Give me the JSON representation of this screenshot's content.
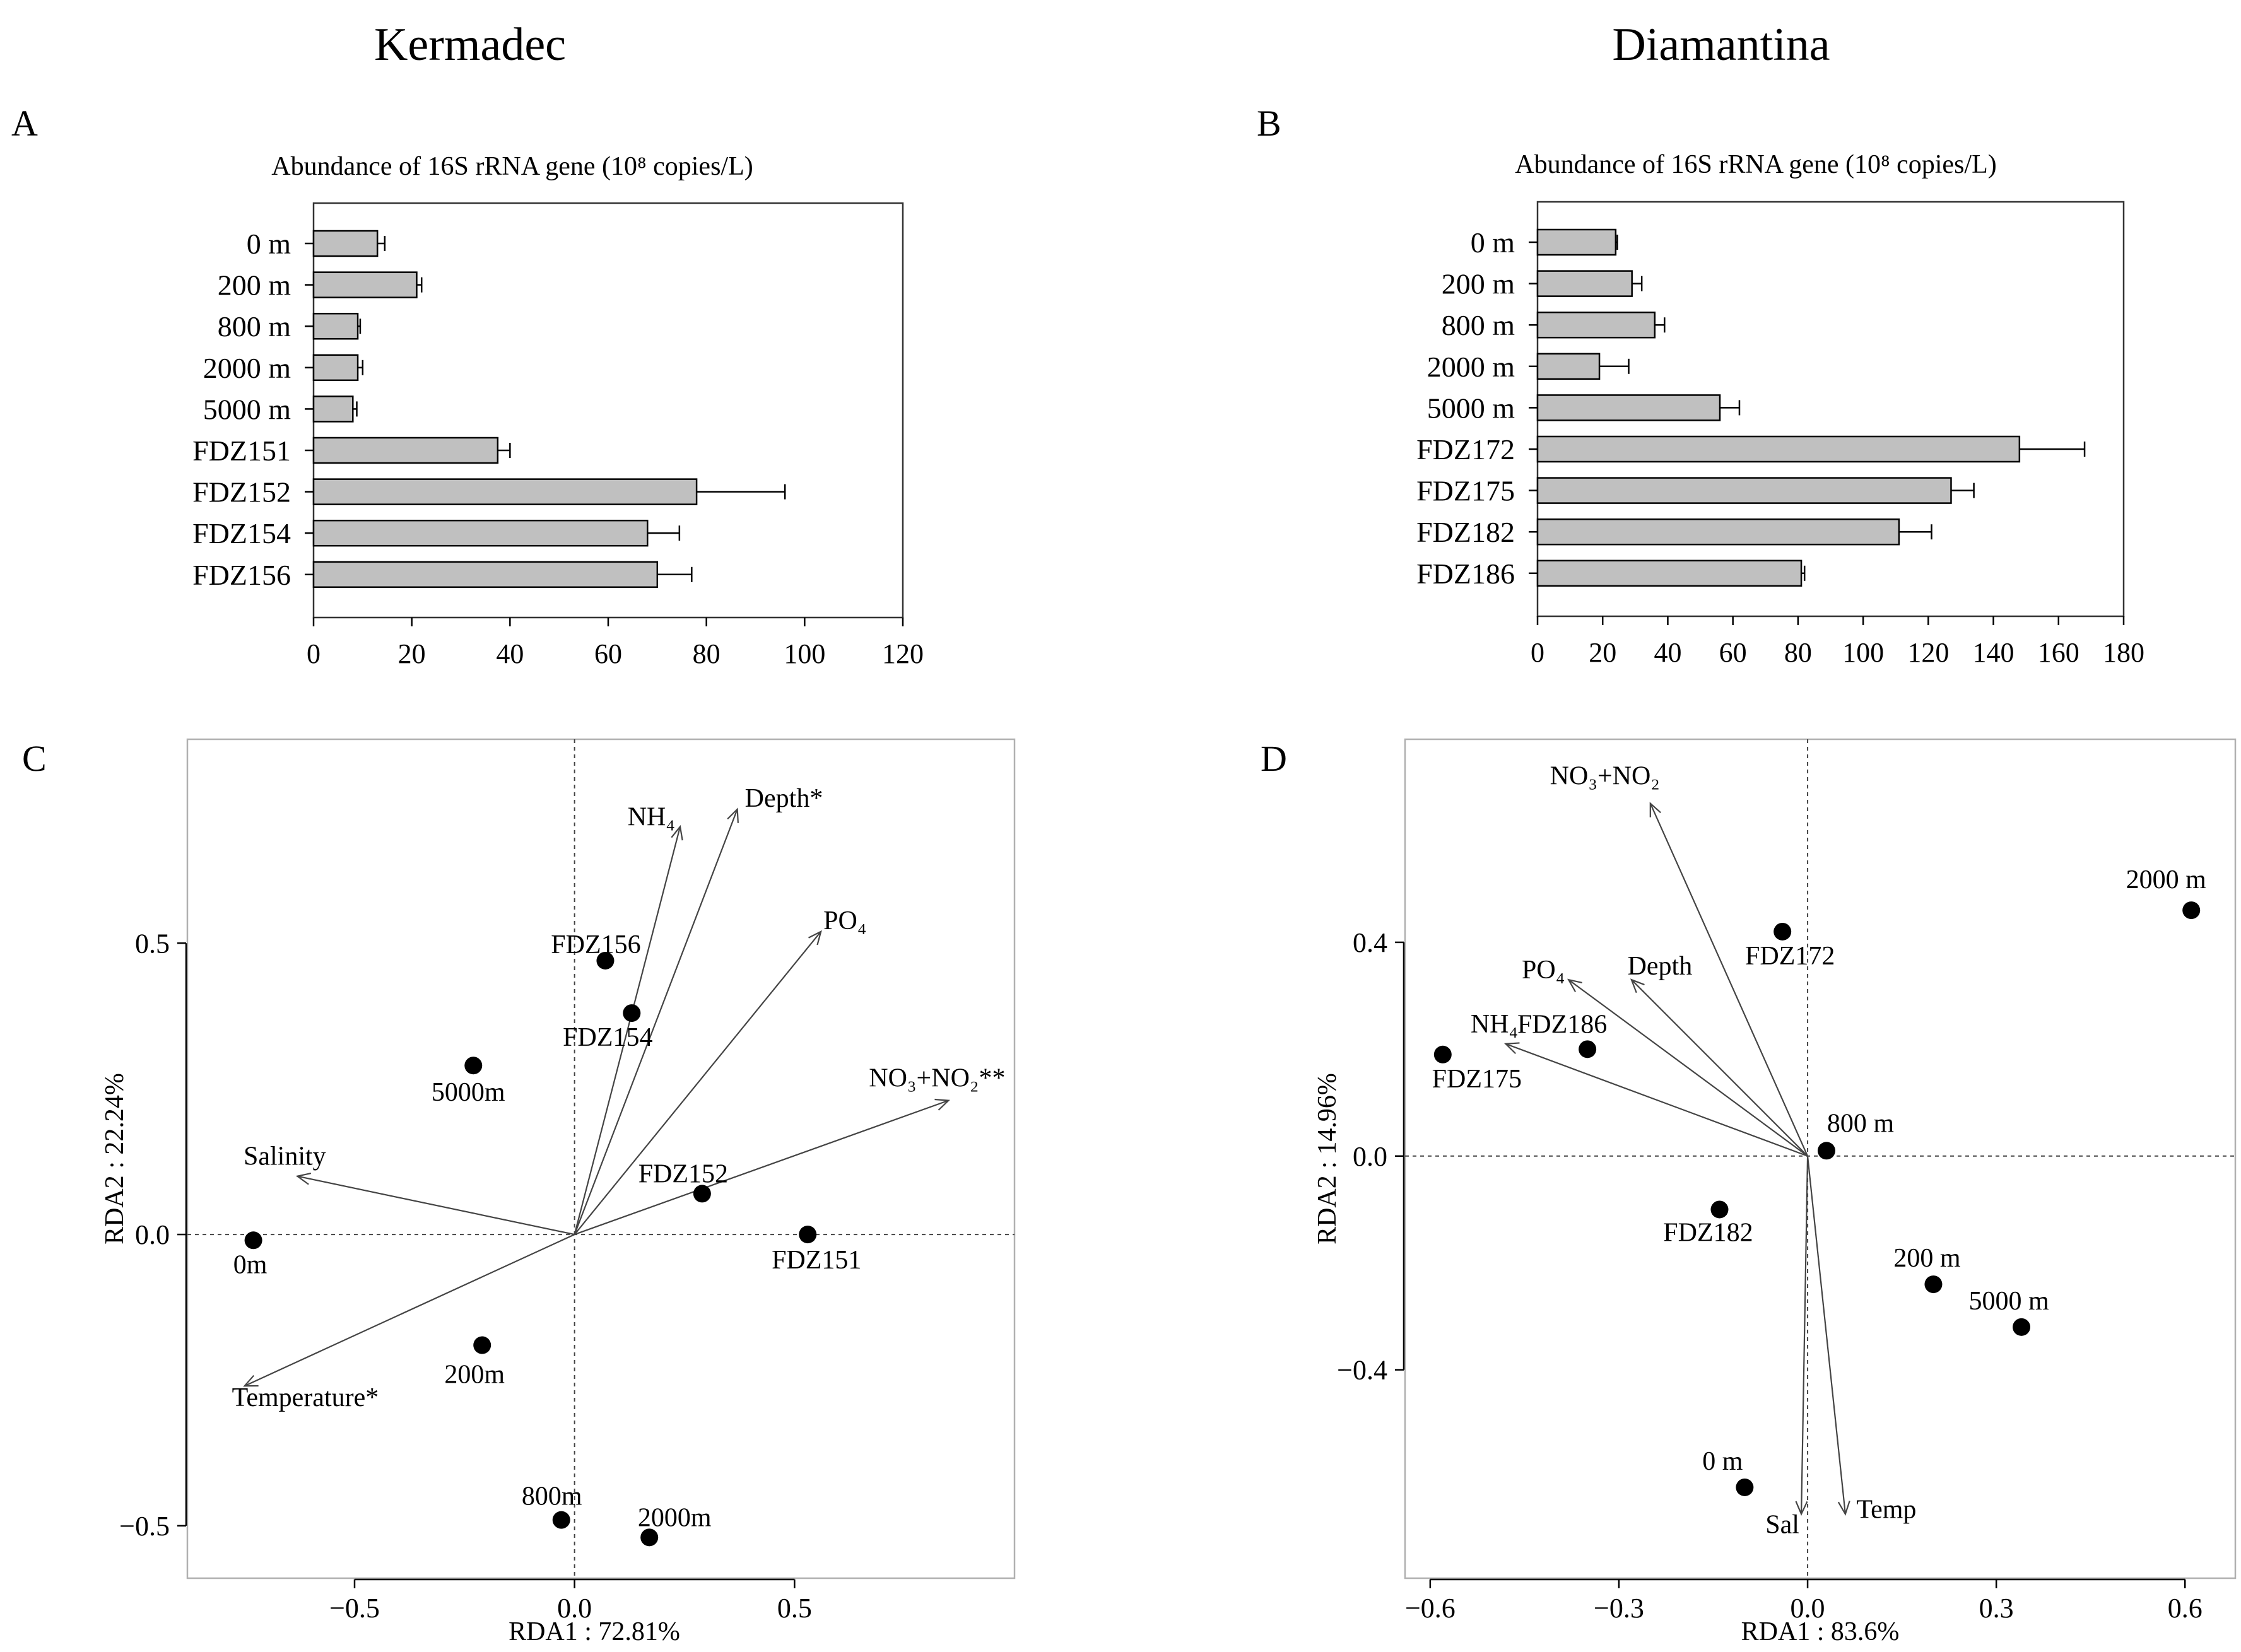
{
  "site_titles": {
    "left": "Kermadec",
    "right": "Diamantina"
  },
  "chart_data": [
    {
      "panel": "A",
      "type": "bar",
      "orientation": "horizontal",
      "title": "Abundance of 16S rRNA gene (10⁸ copies/L)",
      "categories": [
        "0 m",
        "200 m",
        "800 m",
        "2000 m",
        "5000 m",
        "FDZ151",
        "FDZ152",
        "FDZ154",
        "FDZ156"
      ],
      "values": [
        13,
        21,
        9,
        9,
        8,
        37.5,
        78,
        68,
        70
      ],
      "errors": [
        1.5,
        1,
        0.5,
        1,
        0.8,
        2.5,
        18,
        6.5,
        7
      ],
      "xlim": [
        0,
        120
      ],
      "xticks": [
        0,
        20,
        40,
        60,
        80,
        100,
        120
      ],
      "xtick_labels": [
        "0",
        "20",
        "40",
        "60",
        "80",
        "100",
        "120"
      ]
    },
    {
      "panel": "B",
      "type": "bar",
      "orientation": "horizontal",
      "title": "Abundance of 16S rRNA gene (10⁸ copies/L)",
      "categories": [
        "0 m",
        "200 m",
        "800 m",
        "2000 m",
        "5000 m",
        "FDZ172",
        "FDZ175",
        "FDZ182",
        "FDZ186"
      ],
      "values": [
        24,
        29,
        36,
        19,
        56,
        148,
        127,
        111,
        81
      ],
      "errors": [
        0.5,
        3,
        3,
        9,
        6,
        20,
        7,
        10,
        1
      ],
      "xlim": [
        0,
        180
      ],
      "xticks": [
        0,
        20,
        40,
        60,
        80,
        100,
        120,
        140,
        160,
        180
      ],
      "xtick_labels": [
        "0",
        "20",
        "40",
        "60",
        "80",
        "100",
        "120",
        "140",
        "160",
        "180"
      ]
    },
    {
      "panel": "C",
      "type": "scatter",
      "subtype": "rda_biplot",
      "xlabel": "RDA1 : 72.81%",
      "ylabel": "RDA2 : 22.24%",
      "xlim": [
        -0.88,
        1.0
      ],
      "ylim": [
        -0.59,
        0.85
      ],
      "xticks": [
        -0.5,
        0.0,
        0.5
      ],
      "xtick_labels": [
        "−0.5",
        "0.0",
        "0.5"
      ],
      "yticks": [
        -0.5,
        0.0,
        0.5
      ],
      "ytick_labels": [
        "−0.5",
        "0.0",
        "0.5"
      ],
      "arrows": [
        {
          "label": "NH₄",
          "x": 0.24,
          "y": 0.7
        },
        {
          "label": "Depth*",
          "x": 0.37,
          "y": 0.73
        },
        {
          "label": "PO₄",
          "x": 0.56,
          "y": 0.52
        },
        {
          "label": "NO₃+NO₂**",
          "x": 0.85,
          "y": 0.23
        },
        {
          "label": "Salinity",
          "x": -0.63,
          "y": 0.1
        },
        {
          "label": "Temperature*",
          "x": -0.75,
          "y": -0.26
        }
      ],
      "points": [
        {
          "label": "FDZ156",
          "x": 0.07,
          "y": 0.47
        },
        {
          "label": "FDZ154",
          "x": 0.13,
          "y": 0.38
        },
        {
          "label": "5000m",
          "x": -0.23,
          "y": 0.29
        },
        {
          "label": "FDZ152",
          "x": 0.29,
          "y": 0.07
        },
        {
          "label": "FDZ151",
          "x": 0.53,
          "y": 0.0
        },
        {
          "label": "0m",
          "x": -0.73,
          "y": -0.01
        },
        {
          "label": "200m",
          "x": -0.21,
          "y": -0.19
        },
        {
          "label": "800m",
          "x": -0.03,
          "y": -0.49
        },
        {
          "label": "2000m",
          "x": 0.17,
          "y": -0.52
        }
      ]
    },
    {
      "panel": "D",
      "type": "scatter",
      "subtype": "rda_biplot",
      "xlabel": "RDA1 : 83.6%",
      "ylabel": "RDA2 : 14.96%",
      "xlim": [
        -0.64,
        0.68
      ],
      "ylim": [
        -0.79,
        0.78
      ],
      "xticks": [
        -0.6,
        -0.3,
        0.0,
        0.3,
        0.6
      ],
      "xtick_labels": [
        "−0.6",
        "−0.3",
        "0.0",
        "0.3",
        "0.6"
      ],
      "yticks": [
        -0.4,
        0.0,
        0.4
      ],
      "ytick_labels": [
        "−0.4",
        "0.0",
        "0.4"
      ],
      "arrows": [
        {
          "label": "NO₃+NO₂",
          "x": -0.25,
          "y": 0.66
        },
        {
          "label": "PO₄",
          "x": -0.38,
          "y": 0.33
        },
        {
          "label": "Depth",
          "x": -0.28,
          "y": 0.33
        },
        {
          "label": "NH₄",
          "x": -0.48,
          "y": 0.21
        },
        {
          "label": "Sal",
          "x": -0.01,
          "y": -0.67
        },
        {
          "label": "Temp",
          "x": 0.06,
          "y": -0.67
        }
      ],
      "points": [
        {
          "label": "2000 m",
          "x": 0.61,
          "y": 0.46
        },
        {
          "label": "FDZ172",
          "x": -0.04,
          "y": 0.42
        },
        {
          "label": "FDZ186",
          "x": -0.35,
          "y": 0.2
        },
        {
          "label": "FDZ175",
          "x": -0.58,
          "y": 0.19
        },
        {
          "label": "800 m",
          "x": 0.03,
          "y": 0.01
        },
        {
          "label": "FDZ182",
          "x": -0.14,
          "y": -0.1
        },
        {
          "label": "200 m",
          "x": 0.2,
          "y": -0.24
        },
        {
          "label": "5000 m",
          "x": 0.34,
          "y": -0.32
        },
        {
          "label": "0 m",
          "x": -0.1,
          "y": -0.62
        }
      ]
    }
  ]
}
